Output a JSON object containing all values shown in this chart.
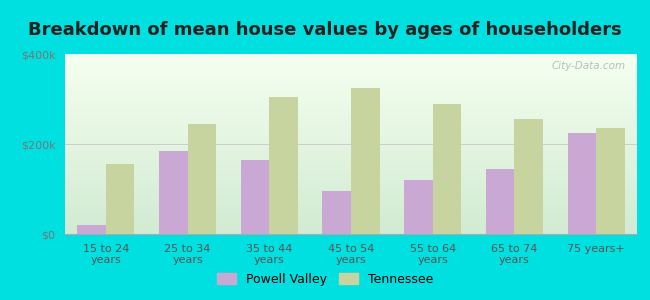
{
  "title": "Breakdown of mean house values by ages of householders",
  "categories": [
    "15 to 24\nyears",
    "25 to 34\nyears",
    "35 to 44\nyears",
    "45 to 54\nyears",
    "55 to 64\nyears",
    "65 to 74\nyears",
    "75 years+"
  ],
  "powell_valley": [
    20000,
    185000,
    165000,
    95000,
    120000,
    145000,
    225000
  ],
  "tennessee": [
    155000,
    245000,
    305000,
    325000,
    290000,
    255000,
    235000
  ],
  "powell_color": "#c9a8d4",
  "tennessee_color": "#c8d4a0",
  "ylim": [
    0,
    400000
  ],
  "yticks": [
    0,
    200000,
    400000
  ],
  "ytick_labels": [
    "$0",
    "$200k",
    "$400k"
  ],
  "bg_outer": "#00e0e0",
  "watermark": "City-Data.com",
  "legend_powell": "Powell Valley",
  "legend_tennessee": "Tennessee",
  "bar_width": 0.35,
  "title_fontsize": 13,
  "tick_fontsize": 8,
  "legend_fontsize": 9
}
